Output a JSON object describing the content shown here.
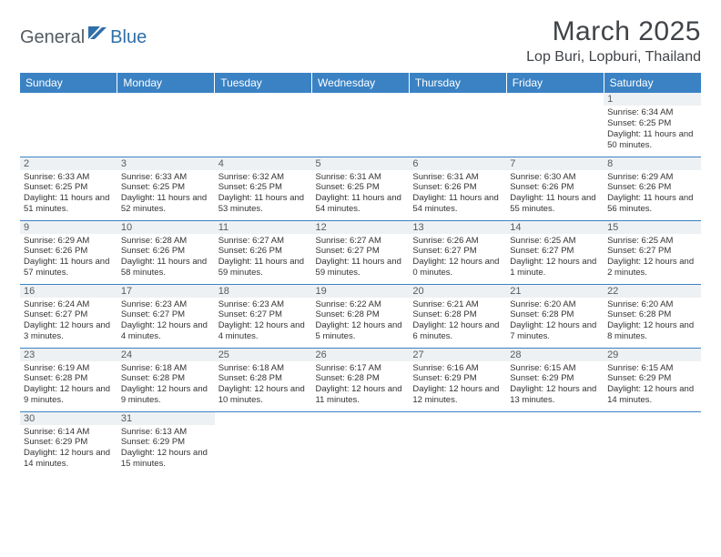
{
  "brand": {
    "part1": "General",
    "part2": "Blue"
  },
  "title": {
    "month": "March 2025",
    "location": "Lop Buri, Lopburi, Thailand"
  },
  "style": {
    "header_bg": "#3a82c4",
    "header_text": "#ffffff",
    "daynum_bg": "#eef1f3",
    "cell_border": "#3a82c4",
    "logo_gray": "#555b60",
    "logo_blue": "#2f6fa8",
    "body_text": "#333333",
    "month_fontsize": 30,
    "location_fontsize": 16,
    "dow_fontsize": 12,
    "daynum_fontsize": 11,
    "body_fontsize": 9.5
  },
  "dow": [
    "Sunday",
    "Monday",
    "Tuesday",
    "Wednesday",
    "Thursday",
    "Friday",
    "Saturday"
  ],
  "weeks": [
    [
      null,
      null,
      null,
      null,
      null,
      null,
      {
        "n": "1",
        "sr": "6:34 AM",
        "ss": "6:25 PM",
        "dl": "11 hours and 50 minutes."
      }
    ],
    [
      {
        "n": "2",
        "sr": "6:33 AM",
        "ss": "6:25 PM",
        "dl": "11 hours and 51 minutes."
      },
      {
        "n": "3",
        "sr": "6:33 AM",
        "ss": "6:25 PM",
        "dl": "11 hours and 52 minutes."
      },
      {
        "n": "4",
        "sr": "6:32 AM",
        "ss": "6:25 PM",
        "dl": "11 hours and 53 minutes."
      },
      {
        "n": "5",
        "sr": "6:31 AM",
        "ss": "6:25 PM",
        "dl": "11 hours and 54 minutes."
      },
      {
        "n": "6",
        "sr": "6:31 AM",
        "ss": "6:26 PM",
        "dl": "11 hours and 54 minutes."
      },
      {
        "n": "7",
        "sr": "6:30 AM",
        "ss": "6:26 PM",
        "dl": "11 hours and 55 minutes."
      },
      {
        "n": "8",
        "sr": "6:29 AM",
        "ss": "6:26 PM",
        "dl": "11 hours and 56 minutes."
      }
    ],
    [
      {
        "n": "9",
        "sr": "6:29 AM",
        "ss": "6:26 PM",
        "dl": "11 hours and 57 minutes."
      },
      {
        "n": "10",
        "sr": "6:28 AM",
        "ss": "6:26 PM",
        "dl": "11 hours and 58 minutes."
      },
      {
        "n": "11",
        "sr": "6:27 AM",
        "ss": "6:26 PM",
        "dl": "11 hours and 59 minutes."
      },
      {
        "n": "12",
        "sr": "6:27 AM",
        "ss": "6:27 PM",
        "dl": "11 hours and 59 minutes."
      },
      {
        "n": "13",
        "sr": "6:26 AM",
        "ss": "6:27 PM",
        "dl": "12 hours and 0 minutes."
      },
      {
        "n": "14",
        "sr": "6:25 AM",
        "ss": "6:27 PM",
        "dl": "12 hours and 1 minute."
      },
      {
        "n": "15",
        "sr": "6:25 AM",
        "ss": "6:27 PM",
        "dl": "12 hours and 2 minutes."
      }
    ],
    [
      {
        "n": "16",
        "sr": "6:24 AM",
        "ss": "6:27 PM",
        "dl": "12 hours and 3 minutes."
      },
      {
        "n": "17",
        "sr": "6:23 AM",
        "ss": "6:27 PM",
        "dl": "12 hours and 4 minutes."
      },
      {
        "n": "18",
        "sr": "6:23 AM",
        "ss": "6:27 PM",
        "dl": "12 hours and 4 minutes."
      },
      {
        "n": "19",
        "sr": "6:22 AM",
        "ss": "6:28 PM",
        "dl": "12 hours and 5 minutes."
      },
      {
        "n": "20",
        "sr": "6:21 AM",
        "ss": "6:28 PM",
        "dl": "12 hours and 6 minutes."
      },
      {
        "n": "21",
        "sr": "6:20 AM",
        "ss": "6:28 PM",
        "dl": "12 hours and 7 minutes."
      },
      {
        "n": "22",
        "sr": "6:20 AM",
        "ss": "6:28 PM",
        "dl": "12 hours and 8 minutes."
      }
    ],
    [
      {
        "n": "23",
        "sr": "6:19 AM",
        "ss": "6:28 PM",
        "dl": "12 hours and 9 minutes."
      },
      {
        "n": "24",
        "sr": "6:18 AM",
        "ss": "6:28 PM",
        "dl": "12 hours and 9 minutes."
      },
      {
        "n": "25",
        "sr": "6:18 AM",
        "ss": "6:28 PM",
        "dl": "12 hours and 10 minutes."
      },
      {
        "n": "26",
        "sr": "6:17 AM",
        "ss": "6:28 PM",
        "dl": "12 hours and 11 minutes."
      },
      {
        "n": "27",
        "sr": "6:16 AM",
        "ss": "6:29 PM",
        "dl": "12 hours and 12 minutes."
      },
      {
        "n": "28",
        "sr": "6:15 AM",
        "ss": "6:29 PM",
        "dl": "12 hours and 13 minutes."
      },
      {
        "n": "29",
        "sr": "6:15 AM",
        "ss": "6:29 PM",
        "dl": "12 hours and 14 minutes."
      }
    ],
    [
      {
        "n": "30",
        "sr": "6:14 AM",
        "ss": "6:29 PM",
        "dl": "12 hours and 14 minutes."
      },
      {
        "n": "31",
        "sr": "6:13 AM",
        "ss": "6:29 PM",
        "dl": "12 hours and 15 minutes."
      },
      null,
      null,
      null,
      null,
      null
    ]
  ],
  "labels": {
    "sunrise": "Sunrise:",
    "sunset": "Sunset:",
    "daylight": "Daylight:"
  }
}
